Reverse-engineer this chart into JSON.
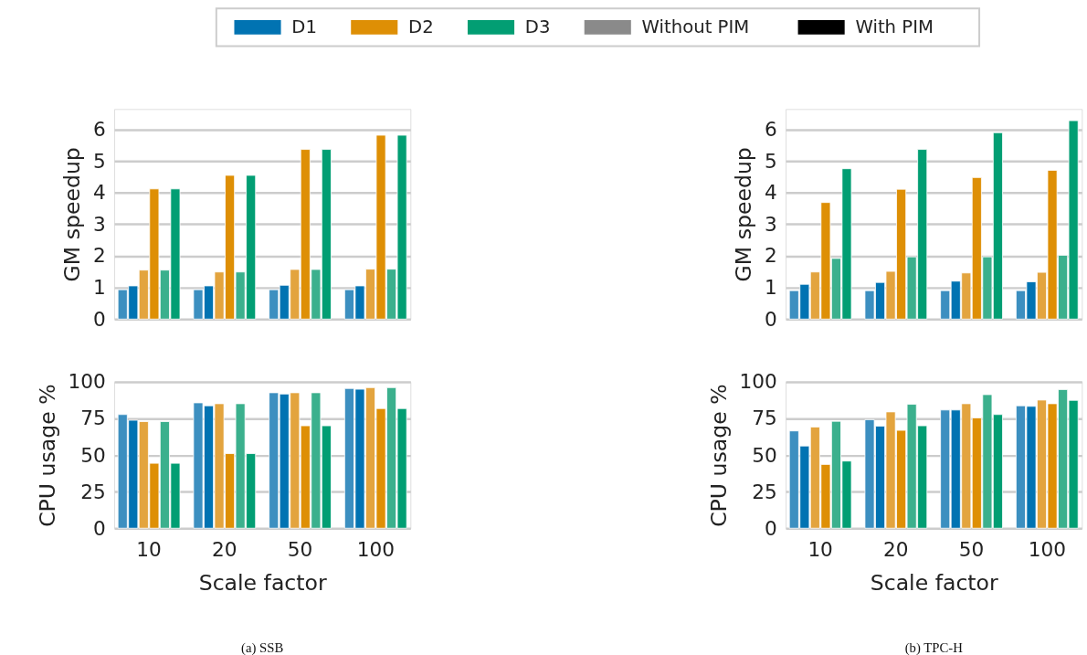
{
  "chart_data": [
    {
      "type": "bar",
      "ylabel": "GM speedup",
      "categories": [
        "10",
        "20",
        "50",
        "100"
      ],
      "ylim": [
        0,
        6.65
      ],
      "yticks": [
        0,
        1,
        2,
        3,
        4,
        5,
        6
      ],
      "grid": "y",
      "tick_labels": "y",
      "legend": "top",
      "annotations": [
        "Without PIM",
        "With PIM"
      ],
      "series": [
        {
          "name": null,
          "color": "#3c8fc0",
          "values": [
            0.93,
            0.93,
            0.93,
            0.93
          ]
        },
        {
          "name": "D1",
          "color": "#0173b2",
          "values": [
            1.05,
            1.05,
            1.07,
            1.05
          ]
        },
        {
          "name": null,
          "color": "#e3a43e",
          "values": [
            1.55,
            1.49,
            1.57,
            1.58
          ]
        },
        {
          "name": "D2",
          "color": "#de8f05",
          "values": [
            4.12,
            4.55,
            5.37,
            5.82
          ]
        },
        {
          "name": null,
          "color": "#3bb08d",
          "values": [
            1.55,
            1.49,
            1.57,
            1.58
          ]
        },
        {
          "name": "D3",
          "color": "#029e73",
          "values": [
            4.12,
            4.55,
            5.37,
            5.82
          ]
        }
      ]
    },
    {
      "type": "bar",
      "ylabel": "CPU usage %",
      "xlabel": "Scale factor",
      "categories": [
        "10",
        "20",
        "50",
        "100"
      ],
      "ylim": [
        0,
        100
      ],
      "yticks": [
        0,
        25,
        50,
        75,
        100
      ],
      "grid": "y",
      "annotations": [
        "(a) SSB"
      ],
      "series": [
        {
          "name": null,
          "color": "#3c8fc0",
          "values": [
            77.7,
            85.7,
            92.6,
            95.5
          ]
        },
        {
          "name": null,
          "color": "#0173b2",
          "values": [
            73.8,
            83.7,
            91.7,
            95.0
          ]
        },
        {
          "name": null,
          "color": "#e3a43e",
          "values": [
            72.9,
            85.1,
            92.6,
            96.1
          ]
        },
        {
          "name": null,
          "color": "#de8f05",
          "values": [
            44.4,
            51.0,
            70.0,
            81.8
          ]
        },
        {
          "name": null,
          "color": "#3bb08d",
          "values": [
            72.9,
            85.1,
            92.6,
            96.1
          ]
        },
        {
          "name": null,
          "color": "#029e73",
          "values": [
            44.4,
            51.0,
            70.0,
            81.8
          ]
        }
      ]
    },
    {
      "type": "bar",
      "ylabel": "GM speedup",
      "categories": [
        "10",
        "20",
        "50",
        "100"
      ],
      "ylim": [
        0,
        6.65
      ],
      "yticks": [
        0,
        1,
        2,
        3,
        4,
        5,
        6
      ],
      "grid": "y",
      "tick_labels": "y",
      "series": [
        {
          "name": null,
          "color": "#3c8fc0",
          "values": [
            0.9,
            0.9,
            0.9,
            0.9
          ]
        },
        {
          "name": null,
          "color": "#0173b2",
          "values": [
            1.1,
            1.16,
            1.2,
            1.18
          ]
        },
        {
          "name": null,
          "color": "#e3a43e",
          "values": [
            1.49,
            1.51,
            1.46,
            1.48
          ]
        },
        {
          "name": null,
          "color": "#de8f05",
          "values": [
            3.69,
            4.11,
            4.48,
            4.71
          ]
        },
        {
          "name": null,
          "color": "#3bb08d",
          "values": [
            1.92,
            1.97,
            1.97,
            2.02
          ]
        },
        {
          "name": null,
          "color": "#029e73",
          "values": [
            4.76,
            5.37,
            5.9,
            6.28
          ]
        }
      ]
    },
    {
      "type": "bar",
      "ylabel": "CPU usage %",
      "xlabel": "Scale factor",
      "categories": [
        "10",
        "20",
        "50",
        "100"
      ],
      "ylim": [
        0,
        100
      ],
      "yticks": [
        0,
        25,
        50,
        75,
        100
      ],
      "grid": "y",
      "annotations": [
        "(b) TPC-H"
      ],
      "series": [
        {
          "name": null,
          "color": "#3c8fc0",
          "values": [
            66.5,
            74.2,
            80.8,
            83.7
          ]
        },
        {
          "name": null,
          "color": "#0173b2",
          "values": [
            56.2,
            69.8,
            80.8,
            83.3
          ]
        },
        {
          "name": null,
          "color": "#e3a43e",
          "values": [
            69.2,
            79.5,
            85.1,
            87.6
          ]
        },
        {
          "name": null,
          "color": "#de8f05",
          "values": [
            43.6,
            66.9,
            75.4,
            85.1
          ]
        },
        {
          "name": null,
          "color": "#3bb08d",
          "values": [
            73.1,
            84.7,
            91.3,
            94.8
          ]
        },
        {
          "name": null,
          "color": "#029e73",
          "values": [
            45.9,
            70.0,
            77.7,
            87.4
          ]
        }
      ]
    }
  ]
}
